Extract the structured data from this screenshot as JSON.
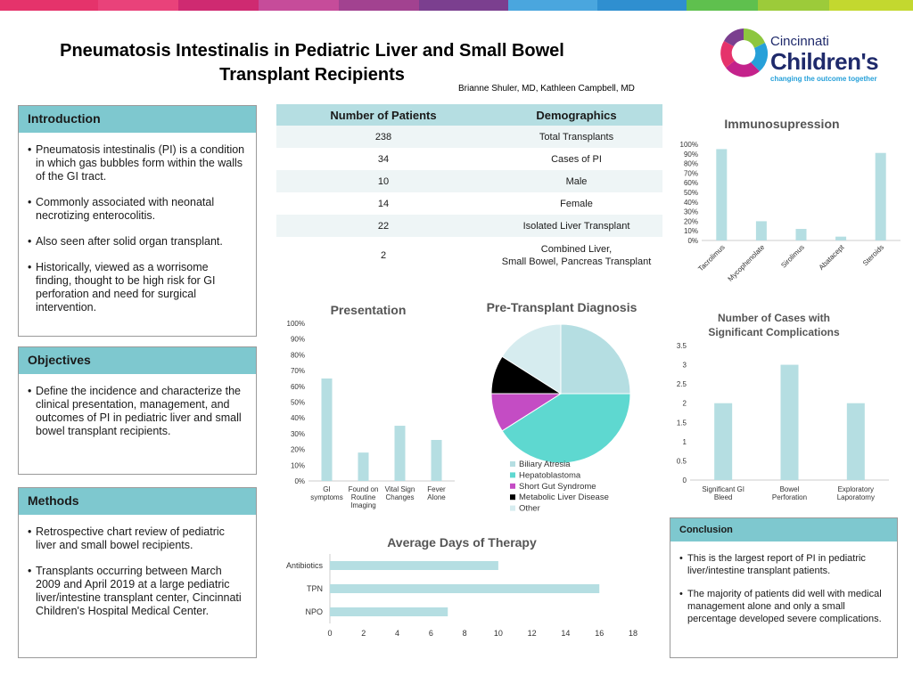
{
  "header": {
    "title_line1": "Pneumatosis Intestinalis in Pediatric Liver and Small Bowel",
    "title_line2": "Transplant Recipients",
    "authors": "Brianne Shuler, MD, Kathleen Campbell, MD",
    "logo_line1": "Cincinnati",
    "logo_line2": "Children's",
    "logo_tagline": "changing the outcome together"
  },
  "introduction": {
    "heading": "Introduction",
    "bullets": [
      "Pneumatosis intestinalis (PI) is a condition in which gas bubbles form within the walls of the GI tract.",
      "Commonly associated with neonatal necrotizing enterocolitis.",
      "Also seen after solid organ transplant.",
      "Historically, viewed as a worrisome finding, thought to be high risk for GI perforation and need for surgical intervention."
    ]
  },
  "objectives": {
    "heading": "Objectives",
    "bullets": [
      "Define the incidence and characterize the clinical presentation, management, and outcomes of PI in pediatric liver and small bowel transplant recipients."
    ]
  },
  "methods": {
    "heading": "Methods",
    "bullets": [
      "Retrospective chart review of pediatric liver and small bowel recipients.",
      "Transplants occurring between March 2009 and April 2019 at a large pediatric liver/intestine transplant center, Cincinnati Children's Hospital Medical Center."
    ]
  },
  "conclusion": {
    "heading": "Conclusion",
    "bullets": [
      "This is the largest report of PI in pediatric liver/intestine transplant patients.",
      "The majority of patients did well with medical management alone and only a small percentage developed severe complications."
    ]
  },
  "demographics_table": {
    "col1": "Number of Patients",
    "col2": "Demographics",
    "rows": [
      {
        "n": "238",
        "label": "Total Transplants"
      },
      {
        "n": "34",
        "label": "Cases of PI"
      },
      {
        "n": "10",
        "label": "Male"
      },
      {
        "n": "14",
        "label": "Female"
      },
      {
        "n": "22",
        "label": "Isolated Liver Transplant"
      },
      {
        "n": "2",
        "label": "Combined Liver,",
        "label2": "Small Bowel, Pancreas Transplant"
      }
    ]
  },
  "colors": {
    "bar": "#b5dee2",
    "header": "#7ec8cf",
    "pie": [
      "#b5dee2",
      "#5ed8d0",
      "#c44cc4",
      "#000000",
      "#d6ecef"
    ]
  },
  "chart_data": [
    {
      "type": "bar",
      "title": "Immunosupression",
      "categories": [
        "Tacrolimus",
        "Mycophenolate",
        "Sirolimus",
        "Abatacept",
        "Steroids"
      ],
      "values": [
        0.95,
        0.2,
        0.12,
        0.04,
        0.91
      ],
      "ylim": [
        0,
        1
      ],
      "yticks": [
        "0%",
        "10%",
        "20%",
        "30%",
        "40%",
        "50%",
        "60%",
        "70%",
        "80%",
        "90%",
        "100%"
      ]
    },
    {
      "type": "bar",
      "title": "Presentation",
      "categories": [
        [
          "GI",
          "symptoms"
        ],
        [
          "Found on",
          "Routine",
          "Imaging"
        ],
        [
          "Vital Sign",
          "Changes"
        ],
        [
          "Fever",
          "Alone"
        ]
      ],
      "values": [
        0.65,
        0.18,
        0.35,
        0.26
      ],
      "ylim": [
        0,
        1
      ],
      "yticks": [
        "0%",
        "10%",
        "20%",
        "30%",
        "40%",
        "50%",
        "60%",
        "70%",
        "80%",
        "90%",
        "100%"
      ]
    },
    {
      "type": "pie",
      "title": "Pre-Transplant Diagnosis",
      "labels": [
        "Biliary Atresia",
        "Hepatoblastoma",
        "Short Gut Syndrome",
        "Metabolic Liver Disease",
        "Other"
      ],
      "values": [
        25,
        41,
        9,
        9,
        16
      ]
    },
    {
      "type": "bar",
      "title_line1": "Number of Cases with",
      "title_line2": "Significant Complications",
      "categories": [
        [
          "Significant GI",
          "Bleed"
        ],
        [
          "Bowel",
          "Perforation"
        ],
        [
          "Exploratory",
          "Laporatomy"
        ]
      ],
      "values": [
        2,
        3,
        2
      ],
      "ylim": [
        0,
        3.5
      ],
      "yticks": [
        "0",
        "0.5",
        "1",
        "1.5",
        "2",
        "2.5",
        "3",
        "3.5"
      ]
    },
    {
      "type": "bar",
      "orientation": "horizontal",
      "title": "Average Days of Therapy",
      "categories": [
        "Antibiotics",
        "TPN",
        "NPO"
      ],
      "values": [
        10,
        16,
        7
      ],
      "xlim": [
        0,
        18
      ],
      "xticks": [
        "0",
        "2",
        "4",
        "6",
        "8",
        "10",
        "12",
        "14",
        "16",
        "18"
      ]
    }
  ]
}
